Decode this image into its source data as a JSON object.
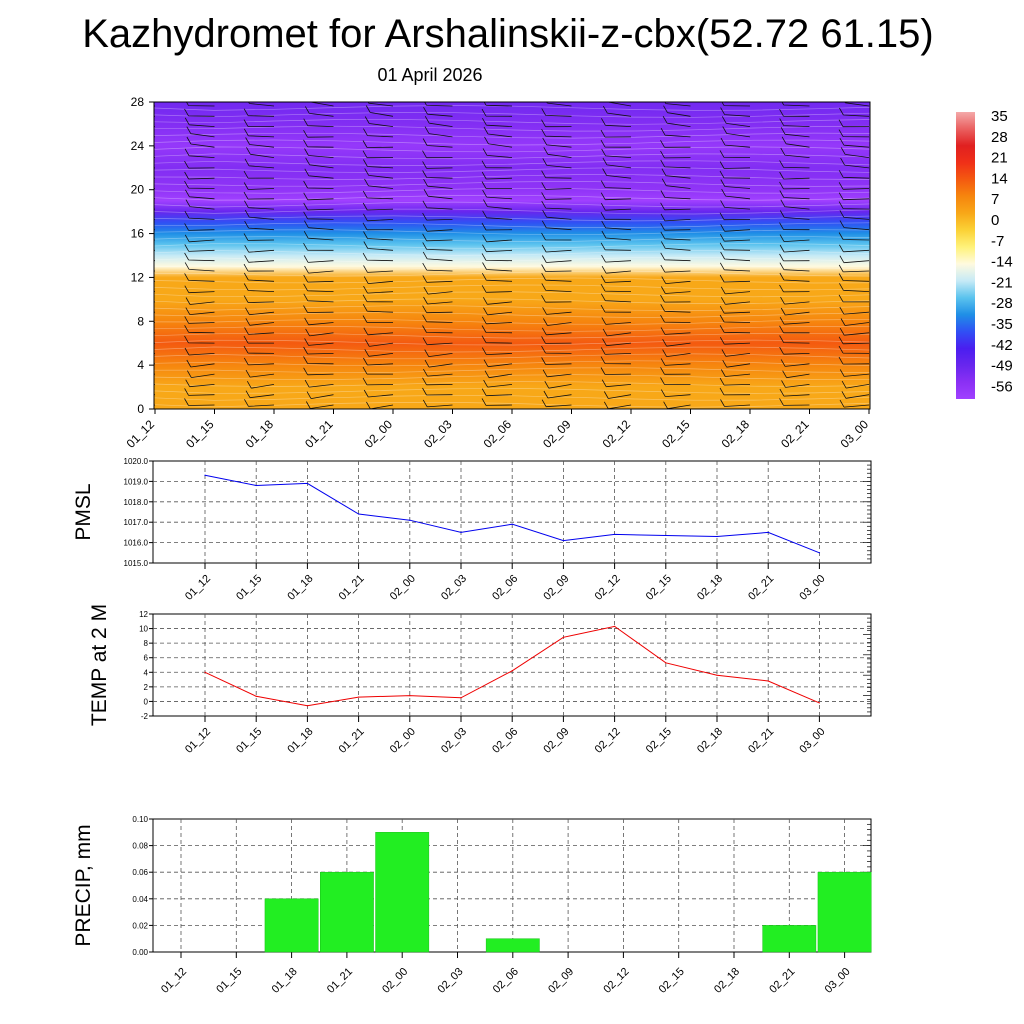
{
  "header": {
    "title": "Kazhydromet for Arshalinskii-z-cbx(52.72 61.15)",
    "subtitle": "01 April 2026"
  },
  "chart_data": [
    {
      "id": "meteogram",
      "type": "heatmap",
      "title": "Kazhydromet for Arshalinskii-z-cbx(52.72 61.15)",
      "subtitle": "01 April 2026",
      "xlabel": "",
      "ylabel": "",
      "x_ticks": [
        "01_12",
        "01_15",
        "01_18",
        "01_21",
        "02_00",
        "02_03",
        "02_06",
        "02_09",
        "02_12",
        "02_15",
        "02_18",
        "02_21",
        "03_00"
      ],
      "y_ticks": [
        0,
        4,
        8,
        12,
        16,
        20,
        24,
        28
      ],
      "ylim": [
        0,
        28
      ],
      "temperature_profile": {
        "levels": [
          0,
          2,
          4,
          6,
          8,
          10,
          12,
          13,
          14,
          15,
          16,
          17,
          18,
          19,
          20,
          22,
          24,
          26,
          28
        ],
        "values": [
          6,
          6,
          9,
          12,
          9,
          6,
          0,
          -14,
          -21,
          -28,
          -35,
          -42,
          -52,
          -60,
          -57,
          -55,
          -58,
          -55,
          -53
        ]
      },
      "wind_barbs": "present on every grid column",
      "colorbar": {
        "labels": [
          "35",
          "28",
          "21",
          "14",
          "7",
          "0",
          "-7",
          "-14",
          "-21",
          "-28",
          "-35",
          "-42",
          "-49",
          "-56"
        ],
        "colors": [
          "#f4a9a9",
          "#ea6060",
          "#e02020",
          "#f03018",
          "#f45a10",
          "#f6860e",
          "#f8a818",
          "#fbd236",
          "#fff27a",
          "#fffadf",
          "#c6eaf6",
          "#5bc3ee",
          "#1f8fe6",
          "#3050f4",
          "#4a1ef0",
          "#6826ee",
          "#8a30f4",
          "#a040ff"
        ]
      }
    },
    {
      "id": "pmsl",
      "type": "line",
      "title": "",
      "ylabel": "PMSL",
      "xlabel": "",
      "x": [
        "01_12",
        "01_15",
        "01_18",
        "01_21",
        "02_00",
        "02_03",
        "02_06",
        "02_09",
        "02_12",
        "02_15",
        "02_18",
        "02_21",
        "03_00"
      ],
      "values": [
        1019.3,
        1018.8,
        1018.9,
        1017.4,
        1017.1,
        1016.5,
        1016.9,
        1016.1,
        1016.4,
        1016.35,
        1016.3,
        1016.5,
        1015.5
      ],
      "ylim": [
        1015.0,
        1020.0
      ],
      "y_ticks": [
        "1015.0",
        "1016.0",
        "1017.0",
        "1018.0",
        "1019.0",
        "1020.0"
      ],
      "color": "#0000ee"
    },
    {
      "id": "temp2m",
      "type": "line",
      "title": "",
      "ylabel": "TEMP at 2 M",
      "xlabel": "",
      "x": [
        "01_12",
        "01_15",
        "01_18",
        "01_21",
        "02_00",
        "02_03",
        "02_06",
        "02_09",
        "02_12",
        "02_15",
        "02_18",
        "02_21",
        "03_00"
      ],
      "values": [
        4.0,
        0.7,
        -0.6,
        0.6,
        0.8,
        0.5,
        4.2,
        8.8,
        10.3,
        5.3,
        3.6,
        2.8,
        -0.2
      ],
      "ylim": [
        -2,
        12
      ],
      "y_ticks": [
        "-2",
        "0",
        "2",
        "4",
        "6",
        "8",
        "10",
        "12"
      ],
      "color": "#ee0000"
    },
    {
      "id": "precip",
      "type": "bar",
      "title": "",
      "ylabel": "PRECIP, mm",
      "xlabel": "",
      "categories": [
        "01_12",
        "01_15",
        "01_18",
        "01_21",
        "02_00",
        "02_03",
        "02_06",
        "02_09",
        "02_12",
        "02_15",
        "02_18",
        "02_21",
        "03_00"
      ],
      "values": [
        0,
        0,
        0.04,
        0.06,
        0.09,
        0,
        0.01,
        0,
        0,
        0,
        0,
        0.02,
        0.06
      ],
      "ylim": [
        0,
        0.1
      ],
      "y_ticks": [
        "0.00",
        "0.02",
        "0.04",
        "0.06",
        "0.08",
        "0.10"
      ],
      "color": "#22ee22"
    }
  ]
}
